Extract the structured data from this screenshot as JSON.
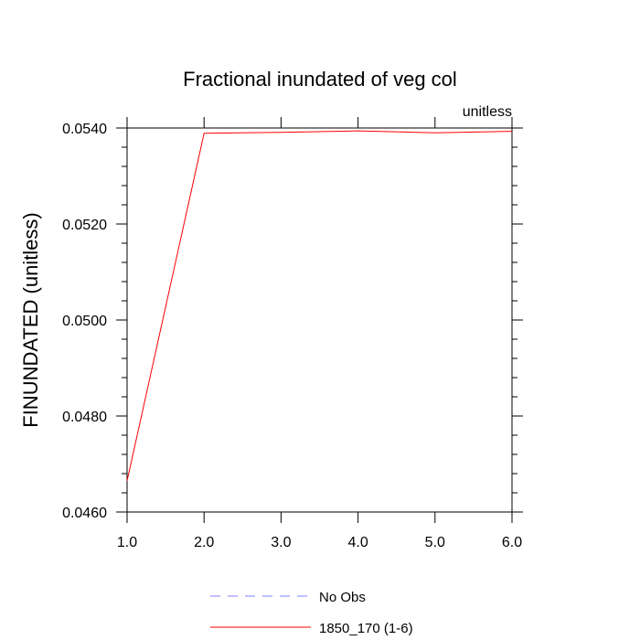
{
  "chart_data": {
    "type": "line",
    "title": "Fractional inundated of veg col",
    "units_label": "unitless",
    "xlabel": "",
    "ylabel": "FINUNDATED  (unitless)",
    "xlim": [
      1.0,
      6.0
    ],
    "ylim": [
      0.046,
      0.054
    ],
    "x_ticks": [
      "1.0",
      "2.0",
      "3.0",
      "4.0",
      "5.0",
      "6.0"
    ],
    "y_ticks": [
      "0.0460",
      "0.0480",
      "0.0500",
      "0.0520",
      "0.0540"
    ],
    "grid": false,
    "legend_position": "bottom-center",
    "series": [
      {
        "name": "No Obs",
        "color": "#8080ff",
        "style": "dashed",
        "x": [],
        "values": []
      },
      {
        "name": "1850_170 (1-6)",
        "color": "#ff0000",
        "style": "solid",
        "x": [
          1.0,
          2.0,
          3.0,
          4.0,
          5.0,
          6.0
        ],
        "values": [
          0.04665,
          0.05389,
          0.05391,
          0.05394,
          0.0539,
          0.05393
        ]
      }
    ]
  }
}
